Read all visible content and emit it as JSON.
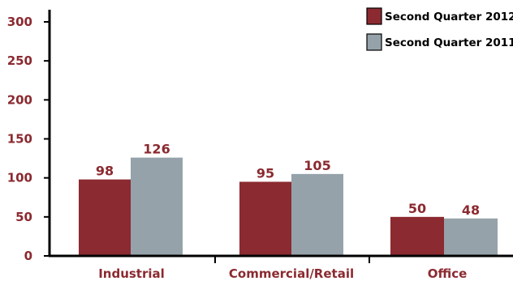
{
  "chart_data": {
    "type": "bar",
    "categories": [
      "Industrial",
      "Commercial/Retail",
      "Office"
    ],
    "series": [
      {
        "name": "Second Quarter 2012",
        "values": [
          98,
          95,
          50
        ],
        "color": "#8b2a30"
      },
      {
        "name": "Second Quarter 2011",
        "values": [
          126,
          105,
          48
        ],
        "color": "#95a2aa"
      }
    ],
    "title": "",
    "xlabel": "",
    "ylabel": "",
    "ylim": [
      0,
      300
    ],
    "yticks": [
      0,
      50,
      100,
      150,
      200,
      250,
      300
    ],
    "grid": false,
    "legend": "top-right",
    "axis_color": "#000000",
    "label_color": "#8b2a30"
  }
}
